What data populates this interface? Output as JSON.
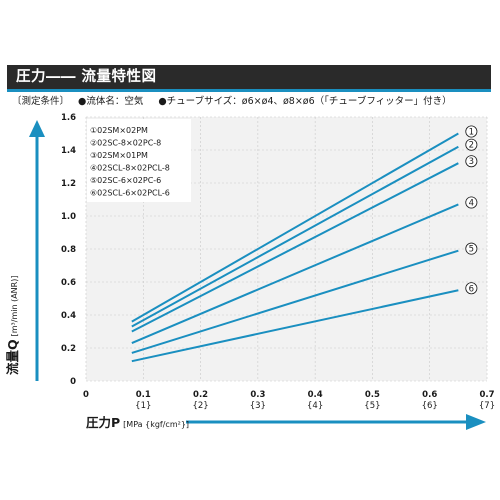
{
  "header": {
    "title": "圧力―― 流量特性図"
  },
  "conditions": {
    "label": "〔測定条件〕",
    "items": [
      "●流体名：空気",
      "●チューブサイズ：ø6×ø4、ø8×ø6（「チューブフィッター」付き）"
    ]
  },
  "colors": {
    "header_bg": "#2a2a2a",
    "accent": "#1a8fc0",
    "line": "#1a8fc0",
    "grid": "#c8c8c8",
    "plot_bg": "#f2f2f2"
  },
  "chart_data": {
    "type": "line",
    "xlabel": {
      "main": "圧力P",
      "unit": "[MPa {kgf/cm²}]"
    },
    "ylabel": {
      "main": "流量Q",
      "unit": "[m³/min (ANR)]"
    },
    "xlim": [
      0,
      0.7
    ],
    "ylim": [
      0,
      1.6
    ],
    "x_ticks": [
      "0",
      "0.1",
      "0.2",
      "0.3",
      "0.4",
      "0.5",
      "0.6",
      "0.7"
    ],
    "x_ticks_secondary": [
      "",
      "{1}",
      "{2}",
      "{3}",
      "{4}",
      "{5}",
      "{6}",
      "{7}"
    ],
    "y_ticks": [
      "0",
      "0.2",
      "0.4",
      "0.6",
      "0.8",
      "1.0",
      "1.2",
      "1.4",
      "1.6"
    ],
    "grid": true,
    "legend_position": "top-left",
    "series": [
      {
        "marker": "①",
        "name": "02SM×02PM",
        "x": [
          0.08,
          0.65
        ],
        "y": [
          0.36,
          1.5
        ]
      },
      {
        "marker": "②",
        "name": "02SC-8×02PC-8",
        "x": [
          0.08,
          0.65
        ],
        "y": [
          0.33,
          1.42
        ]
      },
      {
        "marker": "③",
        "name": "02SM×01PM",
        "x": [
          0.08,
          0.65
        ],
        "y": [
          0.3,
          1.32
        ]
      },
      {
        "marker": "④",
        "name": "02SCL-8×02PCL-8",
        "x": [
          0.08,
          0.65
        ],
        "y": [
          0.23,
          1.07
        ]
      },
      {
        "marker": "⑤",
        "name": "02SC-6×02PC-6",
        "x": [
          0.08,
          0.65
        ],
        "y": [
          0.17,
          0.79
        ]
      },
      {
        "marker": "⑥",
        "name": "02SCL-6×02PCL-6",
        "x": [
          0.08,
          0.65
        ],
        "y": [
          0.12,
          0.55
        ]
      }
    ]
  }
}
